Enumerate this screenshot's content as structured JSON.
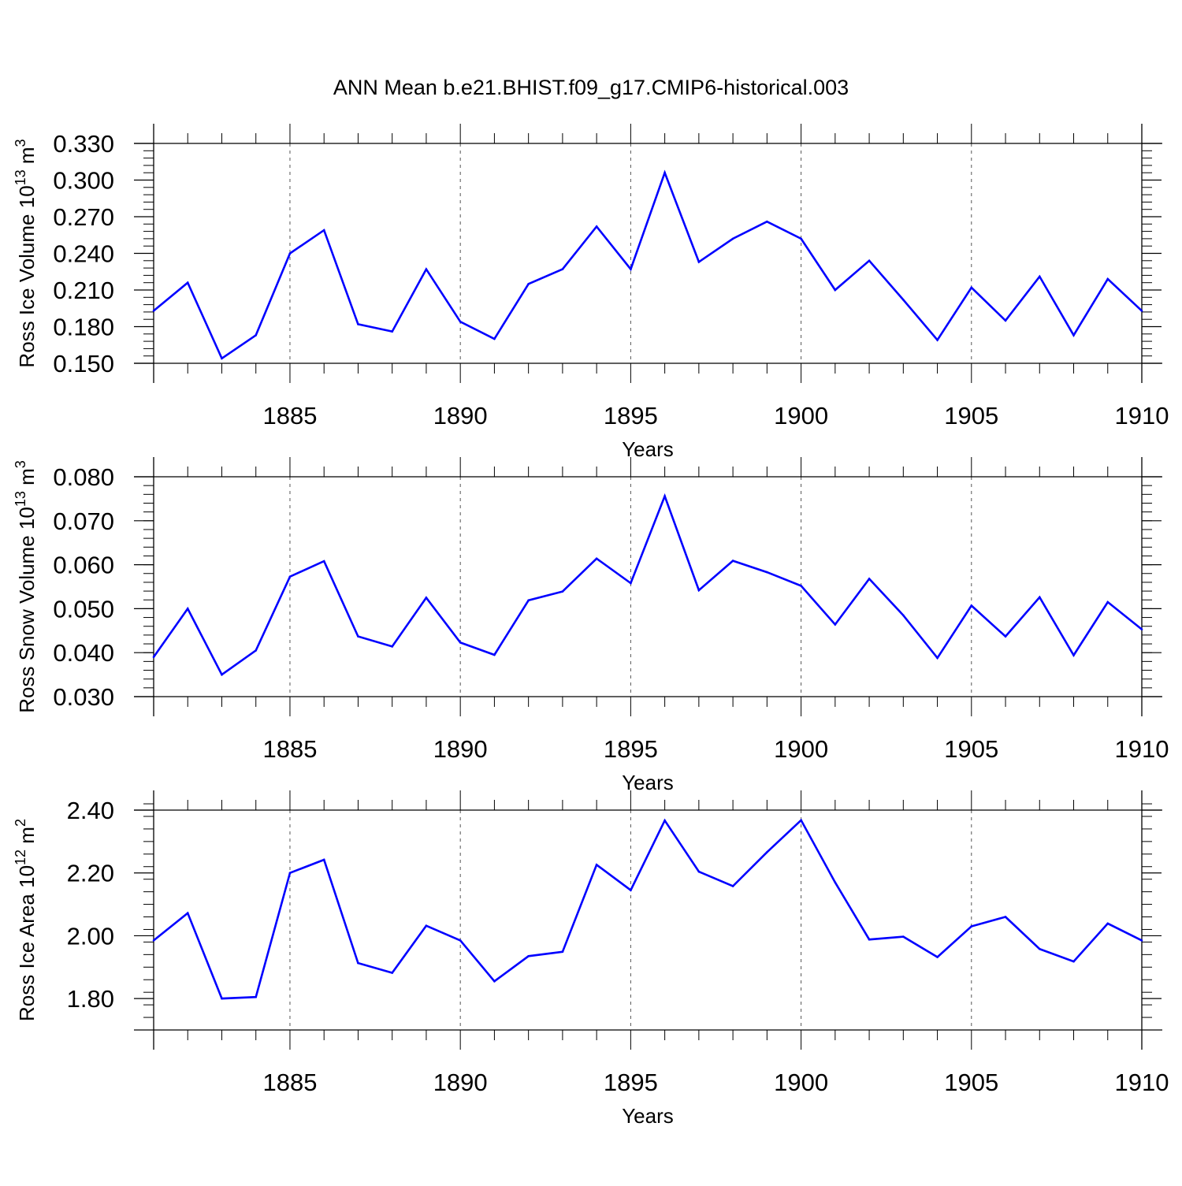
{
  "title": "ANN Mean b.e21.BHIST.f09_g17.CMIP6-historical.003",
  "line_color": "#0000ff",
  "chart_data": [
    {
      "type": "line",
      "ylabel_main": "Ross Ice Volume 10",
      "ylabel_exp": "13",
      "ylabel_tail": " m",
      "ylabel_unit_exp": "3",
      "xlabel": "Years",
      "xlim": [
        1881,
        1910
      ],
      "ylim": [
        0.15,
        0.33
      ],
      "yticks": [
        0.15,
        0.18,
        0.21,
        0.24,
        0.27,
        0.3,
        0.33
      ],
      "ytick_labels": [
        "0.150",
        "0.180",
        "0.210",
        "0.240",
        "0.270",
        "0.300",
        "0.330"
      ],
      "yminor_step": 0.006,
      "xticks": [
        1885,
        1890,
        1895,
        1900,
        1905,
        1910
      ],
      "xtick_labels": [
        "1885",
        "1890",
        "1895",
        "1900",
        "1905",
        "1910"
      ],
      "grid_x": true,
      "x": [
        1881,
        1882,
        1883,
        1884,
        1885,
        1886,
        1887,
        1888,
        1889,
        1890,
        1891,
        1892,
        1893,
        1894,
        1895,
        1896,
        1897,
        1898,
        1899,
        1900,
        1901,
        1902,
        1903,
        1904,
        1905,
        1906,
        1907,
        1908,
        1909,
        1910
      ],
      "values": [
        0.193,
        0.216,
        0.154,
        0.173,
        0.24,
        0.259,
        0.182,
        0.176,
        0.227,
        0.184,
        0.17,
        0.215,
        0.227,
        0.262,
        0.227,
        0.306,
        0.233,
        0.252,
        0.266,
        0.252,
        0.21,
        0.234,
        0.202,
        0.169,
        0.212,
        0.185,
        0.221,
        0.173,
        0.219,
        0.193
      ]
    },
    {
      "type": "line",
      "ylabel_main": "Ross Snow Volume 10",
      "ylabel_exp": "13",
      "ylabel_tail": " m",
      "ylabel_unit_exp": "3",
      "xlabel": "Years",
      "xlim": [
        1881,
        1910
      ],
      "ylim": [
        0.03,
        0.08
      ],
      "yticks": [
        0.03,
        0.04,
        0.05,
        0.06,
        0.07,
        0.08
      ],
      "ytick_labels": [
        "0.030",
        "0.040",
        "0.050",
        "0.060",
        "0.070",
        "0.080"
      ],
      "yminor_step": 0.002,
      "xticks": [
        1885,
        1890,
        1895,
        1900,
        1905,
        1910
      ],
      "xtick_labels": [
        "1885",
        "1890",
        "1895",
        "1900",
        "1905",
        "1910"
      ],
      "grid_x": true,
      "x": [
        1881,
        1882,
        1883,
        1884,
        1885,
        1886,
        1887,
        1888,
        1889,
        1890,
        1891,
        1892,
        1893,
        1894,
        1895,
        1896,
        1897,
        1898,
        1899,
        1900,
        1901,
        1902,
        1903,
        1904,
        1905,
        1906,
        1907,
        1908,
        1909,
        1910
      ],
      "values": [
        0.039,
        0.05,
        0.035,
        0.0405,
        0.0573,
        0.0608,
        0.0437,
        0.0414,
        0.0525,
        0.0423,
        0.0395,
        0.0519,
        0.0539,
        0.0614,
        0.0558,
        0.0756,
        0.0542,
        0.0609,
        0.0583,
        0.0552,
        0.0464,
        0.0568,
        0.0485,
        0.0388,
        0.0507,
        0.0437,
        0.0526,
        0.0394,
        0.0515,
        0.0453
      ]
    },
    {
      "type": "line",
      "ylabel_main": "Ross Ice Area 10",
      "ylabel_exp": "12",
      "ylabel_tail": " m",
      "ylabel_unit_exp": "2",
      "xlabel": "Years",
      "xlim": [
        1881,
        1910
      ],
      "ylim": [
        1.7,
        2.4
      ],
      "yticks": [
        1.8,
        2.0,
        2.2,
        2.4
      ],
      "ytick_labels": [
        "1.80",
        "2.00",
        "2.20",
        "2.40"
      ],
      "yminor_step": 0.04,
      "xticks": [
        1885,
        1890,
        1895,
        1900,
        1905,
        1910
      ],
      "xtick_labels": [
        "1885",
        "1890",
        "1895",
        "1900",
        "1905",
        "1910"
      ],
      "grid_x": true,
      "x": [
        1881,
        1882,
        1883,
        1884,
        1885,
        1886,
        1887,
        1888,
        1889,
        1890,
        1891,
        1892,
        1893,
        1894,
        1895,
        1896,
        1897,
        1898,
        1899,
        1900,
        1901,
        1902,
        1903,
        1904,
        1905,
        1906,
        1907,
        1908,
        1909,
        1910
      ],
      "values": [
        1.985,
        2.072,
        1.8,
        1.805,
        2.2,
        2.242,
        1.913,
        1.882,
        2.032,
        1.985,
        1.855,
        1.935,
        1.949,
        2.226,
        2.145,
        2.367,
        2.204,
        2.158,
        2.266,
        2.368,
        2.17,
        1.988,
        1.997,
        1.932,
        2.03,
        2.06,
        1.958,
        1.918,
        2.039,
        1.985
      ]
    }
  ]
}
